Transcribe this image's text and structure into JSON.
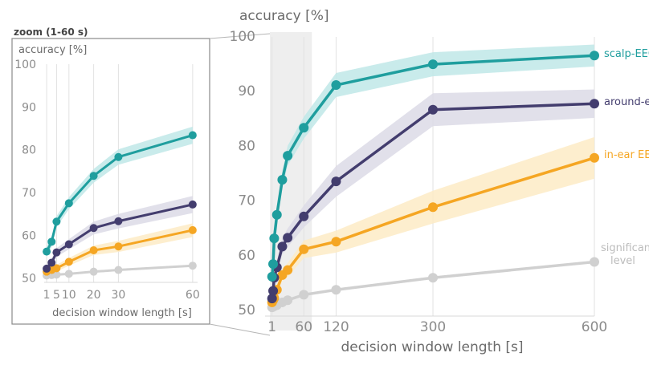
{
  "chart_data": [
    {
      "type": "line",
      "title": "zoom (1-60 s)",
      "ylabel": "accuracy [%]",
      "xlabel": "decision window length [s]",
      "xlim": [
        0,
        62
      ],
      "ylim": [
        49,
        100
      ],
      "xticks": [
        1,
        5,
        10,
        20,
        30,
        60
      ],
      "yticks": [
        50,
        60,
        70,
        80,
        90,
        100
      ],
      "grid": true,
      "series": [
        {
          "key": "scalp",
          "color": "#1f9e9e",
          "band_color": "#bfe7e7",
          "x": [
            1,
            3,
            5,
            10,
            20,
            30,
            60
          ],
          "y": [
            56.2,
            58.5,
            63.2,
            67.5,
            73.9,
            78.3,
            83.4
          ],
          "band": [
            1.2,
            1.2,
            1.3,
            1.4,
            1.6,
            1.8,
            2.0
          ]
        },
        {
          "key": "around",
          "color": "#433d6e",
          "band_color": "#dcdbe6",
          "x": [
            1,
            3,
            5,
            10,
            20,
            30,
            60
          ],
          "y": [
            52.2,
            53.6,
            56.0,
            57.9,
            61.7,
            63.3,
            67.2
          ],
          "band": [
            0.8,
            0.9,
            1.0,
            1.2,
            1.5,
            1.7,
            2.0
          ]
        },
        {
          "key": "in-ear",
          "color": "#f5a623",
          "band_color": "#fdebc6",
          "x": [
            1,
            3,
            5,
            10,
            20,
            30,
            60
          ],
          "y": [
            51.5,
            51.9,
            52.3,
            53.8,
            56.5,
            57.4,
            61.2
          ],
          "band": [
            0.7,
            0.7,
            0.8,
            0.9,
            1.1,
            1.3,
            1.6
          ]
        },
        {
          "key": "significance",
          "color": "#d0d0d0",
          "band_color": "#ececec",
          "x": [
            1,
            3,
            5,
            10,
            20,
            30,
            60
          ],
          "y": [
            50.6,
            50.7,
            50.8,
            51.0,
            51.5,
            51.9,
            52.9
          ],
          "band": [
            0,
            0,
            0,
            0,
            0,
            0,
            0
          ]
        }
      ]
    },
    {
      "type": "line",
      "ylabel": "accuracy [%]",
      "xlabel": "decision window length [s]",
      "xlim": [
        -12,
        600
      ],
      "ylim": [
        49,
        100
      ],
      "xticks": [
        1,
        60,
        120,
        300,
        600
      ],
      "yticks": [
        50,
        60,
        70,
        80,
        90,
        100
      ],
      "grid": true,
      "series": [
        {
          "name": "scalp-EEG",
          "color": "#1f9e9e",
          "band_color": "#bfe7e7",
          "x": [
            1,
            3,
            5,
            10,
            20,
            30,
            60,
            120,
            300,
            600
          ],
          "y": [
            56.2,
            58.5,
            63.2,
            67.5,
            73.9,
            78.3,
            83.4,
            91.2,
            95.0,
            96.6
          ],
          "band": [
            1.2,
            1.2,
            1.3,
            1.4,
            1.6,
            1.8,
            2.0,
            2.2,
            2.2,
            2.0
          ]
        },
        {
          "name": "around-ear",
          "color": "#433d6e",
          "band_color": "#dcdbe6",
          "x": [
            1,
            3,
            5,
            10,
            20,
            30,
            60,
            120,
            300,
            600
          ],
          "y": [
            52.2,
            53.6,
            56.0,
            57.9,
            61.7,
            63.3,
            67.2,
            73.6,
            86.7,
            87.8
          ],
          "band": [
            0.8,
            0.9,
            1.0,
            1.2,
            1.5,
            1.7,
            2.0,
            2.8,
            3.0,
            2.6
          ]
        },
        {
          "name": "in-ear EEG",
          "color": "#f5a623",
          "band_color": "#fdebc6",
          "x": [
            1,
            3,
            5,
            10,
            20,
            30,
            60,
            120,
            300,
            600
          ],
          "y": [
            51.5,
            51.9,
            52.3,
            53.8,
            56.5,
            57.4,
            61.2,
            62.6,
            68.9,
            77.9
          ],
          "band": [
            0.7,
            0.7,
            0.8,
            0.9,
            1.1,
            1.3,
            1.6,
            2.0,
            3.0,
            3.8
          ]
        },
        {
          "name": "significance level",
          "color": "#d0d0d0",
          "band_color": "#ececec",
          "x": [
            1,
            3,
            5,
            10,
            20,
            30,
            60,
            120,
            300,
            600
          ],
          "y": [
            50.6,
            50.7,
            50.8,
            51.0,
            51.5,
            51.9,
            52.9,
            53.8,
            56.0,
            58.9
          ],
          "band": [
            0,
            0,
            0,
            0,
            0,
            0,
            0,
            0,
            0,
            0
          ]
        }
      ]
    }
  ]
}
